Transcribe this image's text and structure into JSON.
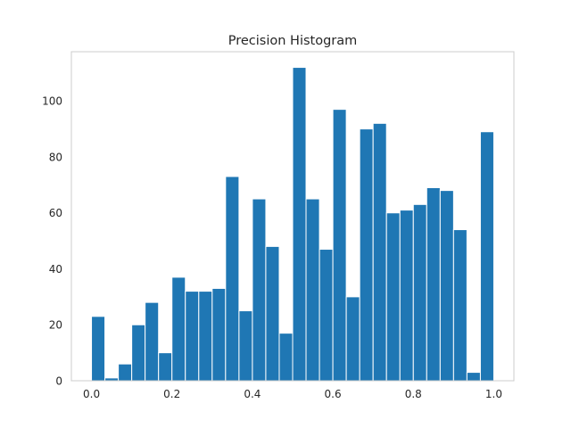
{
  "chart_data": {
    "type": "bar",
    "title": "Precision Histogram",
    "xlabel": "",
    "ylabel": "",
    "bin_edges": [
      0.0,
      0.0333,
      0.0667,
      0.1,
      0.1333,
      0.1667,
      0.2,
      0.2333,
      0.2667,
      0.3,
      0.3333,
      0.3667,
      0.4,
      0.4333,
      0.4667,
      0.5,
      0.5333,
      0.5667,
      0.6,
      0.6333,
      0.6667,
      0.7,
      0.7333,
      0.7667,
      0.8,
      0.8333,
      0.8667,
      0.9,
      0.9333,
      0.9667,
      1.0
    ],
    "values": [
      23,
      1,
      6,
      20,
      28,
      10,
      37,
      32,
      32,
      33,
      73,
      25,
      65,
      48,
      17,
      112,
      65,
      47,
      97,
      30,
      90,
      92,
      60,
      61,
      63,
      69,
      68,
      54,
      3,
      89
    ],
    "xlim": [
      -0.05,
      1.05
    ],
    "ylim": [
      0,
      117.6
    ],
    "xticks": [
      0.0,
      0.2,
      0.4,
      0.6,
      0.8,
      1.0
    ],
    "xtick_labels": [
      "0.0",
      "0.2",
      "0.4",
      "0.6",
      "0.8",
      "1.0"
    ],
    "yticks": [
      0,
      20,
      40,
      60,
      80,
      100
    ],
    "ytick_labels": [
      "0",
      "20",
      "40",
      "60",
      "80",
      "100"
    ],
    "grid": false,
    "bar_color": "#1f77b4",
    "bar_edge_color": "#ffffff",
    "spine_color": "#cccccc"
  }
}
